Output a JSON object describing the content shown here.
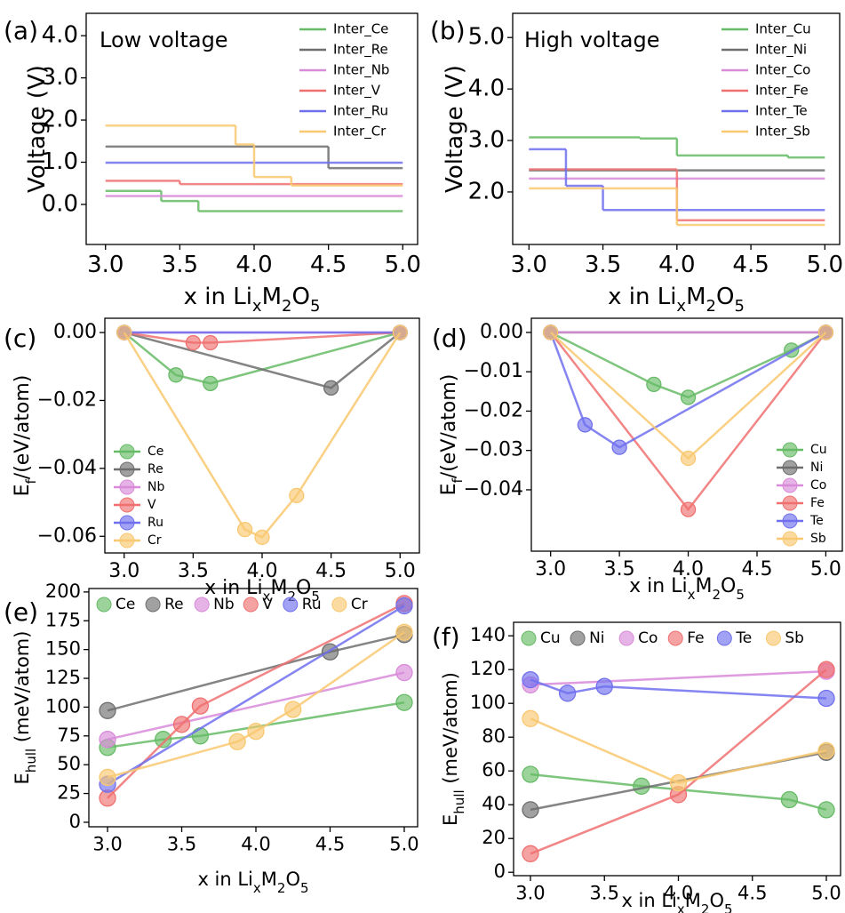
{
  "chart_data": [
    {
      "type": "step",
      "panel_label": "(a)",
      "annotation": "Low voltage",
      "xlabel": [
        "x in Li",
        "x",
        "M",
        "2",
        "O",
        "5"
      ],
      "ylabel": [
        "Voltage (V)"
      ],
      "xlim": [
        2.87,
        5.1
      ],
      "ylim": [
        -0.95,
        4.53
      ],
      "xticks": [
        {
          "value": 3,
          "label": "3.0"
        },
        {
          "value": 3.5,
          "label": "3.5"
        },
        {
          "value": 4,
          "label": "4.0"
        },
        {
          "value": 4.5,
          "label": "4.5"
        },
        {
          "value": 5,
          "label": "5.0"
        }
      ],
      "yticks": [
        {
          "value": 0,
          "label": "0.0"
        },
        {
          "value": 1,
          "label": "1.0"
        },
        {
          "value": 2,
          "label": "2.0"
        },
        {
          "value": 3,
          "label": "3.0"
        },
        {
          "value": 4,
          "label": "4.0"
        }
      ],
      "legend": "upper right",
      "legend_handle": "line",
      "legend_ncol": 1,
      "series": [
        {
          "name": "Inter_Ce",
          "color": "#66bb66",
          "x_edges": [
            3,
            3.375,
            3.625,
            5
          ],
          "values": [
            0.32,
            0.08,
            -0.16
          ]
        },
        {
          "name": "Inter_Re",
          "color": "#6e6e6e",
          "x_edges": [
            3,
            4.5,
            5
          ],
          "values": [
            1.37,
            0.86
          ]
        },
        {
          "name": "Inter_Nb",
          "color": "#d98ad9",
          "x_edges": [
            3,
            5
          ],
          "values": [
            0.2
          ]
        },
        {
          "name": "Inter_V",
          "color": "#f07070",
          "x_edges": [
            3,
            3.5,
            5
          ],
          "values": [
            0.56,
            0.48
          ]
        },
        {
          "name": "Inter_Ru",
          "color": "#7070ee",
          "x_edges": [
            3,
            5
          ],
          "values": [
            0.99
          ]
        },
        {
          "name": "Inter_Cr",
          "color": "#f9c870",
          "x_edges": [
            3,
            3.875,
            4,
            4.25,
            5
          ],
          "values": [
            1.87,
            1.42,
            0.65,
            0.45
          ]
        }
      ]
    },
    {
      "type": "step",
      "panel_label": "(b)",
      "annotation": "High voltage",
      "xlabel": [
        "x in Li",
        "x",
        "M",
        "2",
        "O",
        "5"
      ],
      "ylabel": [
        "Voltage (V)"
      ],
      "xlim": [
        2.89,
        5.1
      ],
      "ylim": [
        0.98,
        5.47
      ],
      "xticks": [
        {
          "value": 3,
          "label": "3.0"
        },
        {
          "value": 3.5,
          "label": "3.5"
        },
        {
          "value": 4,
          "label": "4.0"
        },
        {
          "value": 4.5,
          "label": "4.5"
        },
        {
          "value": 5,
          "label": "5.0"
        }
      ],
      "yticks": [
        {
          "value": 2,
          "label": "2.0"
        },
        {
          "value": 3,
          "label": "3.0"
        },
        {
          "value": 4,
          "label": "4.0"
        },
        {
          "value": 5,
          "label": "5.0"
        }
      ],
      "legend": "upper right",
      "legend_handle": "line",
      "legend_ncol": 1,
      "series": [
        {
          "name": "Inter_Cu",
          "color": "#66bb66",
          "x_edges": [
            3,
            3.75,
            4,
            4.75,
            5
          ],
          "values": [
            3.06,
            3.04,
            2.71,
            2.67
          ]
        },
        {
          "name": "Inter_Ni",
          "color": "#6e6e6e",
          "x_edges": [
            3,
            5
          ],
          "values": [
            2.42
          ]
        },
        {
          "name": "Inter_Co",
          "color": "#d98ad9",
          "x_edges": [
            3,
            5
          ],
          "values": [
            2.26
          ]
        },
        {
          "name": "Inter_Fe",
          "color": "#f07070",
          "x_edges": [
            3,
            4,
            5
          ],
          "values": [
            2.44,
            1.45
          ]
        },
        {
          "name": "Inter_Te",
          "color": "#7070ee",
          "x_edges": [
            3,
            3.25,
            3.5,
            5
          ],
          "values": [
            2.83,
            2.12,
            1.65
          ]
        },
        {
          "name": "Inter_Sb",
          "color": "#f9c870",
          "x_edges": [
            3,
            4,
            5
          ],
          "values": [
            2.07,
            1.36
          ]
        }
      ]
    },
    {
      "type": "line",
      "markers": true,
      "panel_label": "(c)",
      "xlabel": [
        "x in Li",
        "x",
        "M",
        "2",
        "O",
        "5"
      ],
      "ylabel": [
        "E",
        "f",
        "/(eV/atom)"
      ],
      "xlim": [
        2.86,
        5.14
      ],
      "ylim": [
        -0.0649,
        0.0042
      ],
      "xticks": [
        {
          "value": 3,
          "label": "3.0"
        },
        {
          "value": 3.5,
          "label": "3.5"
        },
        {
          "value": 4,
          "label": "4.0"
        },
        {
          "value": 4.5,
          "label": "4.5"
        },
        {
          "value": 5,
          "label": "5.0"
        }
      ],
      "yticks": [
        {
          "value": 0,
          "label": "0.00"
        },
        {
          "value": -0.02,
          "label": "−0.02"
        },
        {
          "value": -0.04,
          "label": "−0.04"
        },
        {
          "value": -0.06,
          "label": "−0.06"
        }
      ],
      "legend": "lower left",
      "legend_handle": "linemarker",
      "legend_ncol": 1,
      "series": [
        {
          "name": "Ce",
          "color": "#66bb66",
          "x": [
            3,
            3.375,
            3.625,
            5
          ],
          "values": [
            0,
            -0.0125,
            -0.015,
            0
          ]
        },
        {
          "name": "Re",
          "color": "#6e6e6e",
          "x": [
            3,
            4.5,
            5
          ],
          "values": [
            0,
            -0.0163,
            0
          ]
        },
        {
          "name": "Nb",
          "color": "#d98ad9",
          "x": [
            3,
            5
          ],
          "values": [
            0,
            0
          ]
        },
        {
          "name": "V",
          "color": "#f07070",
          "x": [
            3,
            3.5,
            3.625,
            5
          ],
          "values": [
            0,
            -0.003,
            -0.003,
            0
          ]
        },
        {
          "name": "Ru",
          "color": "#7070ee",
          "x": [
            3,
            5
          ],
          "values": [
            0,
            0
          ]
        },
        {
          "name": "Cr",
          "color": "#f9c870",
          "x": [
            3,
            3.875,
            4,
            4.25,
            5
          ],
          "values": [
            0,
            -0.058,
            -0.0603,
            -0.048,
            0
          ]
        }
      ]
    },
    {
      "type": "line",
      "markers": true,
      "panel_label": "(d)",
      "xlabel": [
        "x in Li",
        "x",
        "M",
        "2",
        "O",
        "5"
      ],
      "ylabel": [
        "E",
        "f",
        "/(eV/atom)"
      ],
      "xlim": [
        2.86,
        5.12
      ],
      "ylim": [
        -0.0556,
        0.0036
      ],
      "xticks": [
        {
          "value": 3,
          "label": "3.0"
        },
        {
          "value": 3.5,
          "label": "3.5"
        },
        {
          "value": 4,
          "label": "4.0"
        },
        {
          "value": 4.5,
          "label": "4.5"
        },
        {
          "value": 5,
          "label": "5.0"
        }
      ],
      "yticks": [
        {
          "value": 0,
          "label": "0.00"
        },
        {
          "value": -0.01,
          "label": "−0.01"
        },
        {
          "value": -0.02,
          "label": "−0.02"
        },
        {
          "value": -0.03,
          "label": "−0.03"
        },
        {
          "value": -0.04,
          "label": "−0.04"
        }
      ],
      "legend": "lower right",
      "legend_handle": "linemarker",
      "legend_ncol": 1,
      "series": [
        {
          "name": "Cu",
          "color": "#66bb66",
          "x": [
            3,
            3.75,
            4,
            4.75,
            5
          ],
          "values": [
            0,
            -0.0132,
            -0.0165,
            -0.0045,
            0
          ]
        },
        {
          "name": "Ni",
          "color": "#6e6e6e",
          "x": [
            3,
            5
          ],
          "values": [
            0,
            0
          ]
        },
        {
          "name": "Co",
          "color": "#d98ad9",
          "x": [
            3,
            5
          ],
          "values": [
            0,
            0
          ]
        },
        {
          "name": "Fe",
          "color": "#f07070",
          "x": [
            3,
            4,
            5
          ],
          "values": [
            0,
            -0.045,
            0
          ]
        },
        {
          "name": "Te",
          "color": "#7070ee",
          "x": [
            3,
            3.25,
            3.5,
            5
          ],
          "values": [
            0,
            -0.0235,
            -0.0292,
            0
          ]
        },
        {
          "name": "Sb",
          "color": "#f9c870",
          "x": [
            3,
            4,
            5
          ],
          "values": [
            0,
            -0.032,
            0
          ]
        }
      ]
    },
    {
      "type": "line",
      "markers": true,
      "panel_label": "(e)",
      "xlabel": [
        "x in Li",
        "x",
        "M",
        "2",
        "O",
        "5"
      ],
      "ylabel": [
        "E",
        "hull",
        " (meV/atom)"
      ],
      "xlim": [
        2.874,
        5.09
      ],
      "ylim": [
        -3.9,
        203
      ],
      "xticks": [
        {
          "value": 3,
          "label": "3.0"
        },
        {
          "value": 3.5,
          "label": "3.5"
        },
        {
          "value": 4,
          "label": "4.0"
        },
        {
          "value": 4.5,
          "label": "4.5"
        },
        {
          "value": 5,
          "label": "5.0"
        }
      ],
      "yticks": [
        0,
        25,
        50,
        75,
        100,
        125,
        150,
        175,
        200
      ],
      "legend": "upper left",
      "legend_handle": "marker",
      "legend_ncol": 6,
      "series": [
        {
          "name": "Ce",
          "color": "#66bb66",
          "x": [
            3,
            3.375,
            3.625,
            5
          ],
          "values": [
            65,
            72,
            75,
            104
          ]
        },
        {
          "name": "Re",
          "color": "#6e6e6e",
          "x": [
            3,
            4.5,
            5
          ],
          "values": [
            97,
            148,
            163
          ]
        },
        {
          "name": "Nb",
          "color": "#d98ad9",
          "x": [
            3,
            5
          ],
          "values": [
            72,
            130
          ]
        },
        {
          "name": "V",
          "color": "#f07070",
          "x": [
            3,
            3.5,
            3.625,
            5
          ],
          "values": [
            21,
            85,
            101,
            190
          ]
        },
        {
          "name": "Ru",
          "color": "#7070ee",
          "x": [
            3,
            5
          ],
          "values": [
            33,
            188
          ]
        },
        {
          "name": "Cr",
          "color": "#f9c870",
          "x": [
            3,
            3.875,
            4,
            4.25,
            5
          ],
          "values": [
            39,
            70,
            79,
            98,
            165
          ]
        }
      ]
    },
    {
      "type": "line",
      "markers": true,
      "panel_label": "(f)",
      "xlabel": [
        "x in Li",
        "x",
        "M",
        "2",
        "O",
        "5"
      ],
      "ylabel": [
        "E",
        "hull",
        " (meV/atom)"
      ],
      "xlim": [
        2.886,
        5.096
      ],
      "ylim": [
        -2,
        148
      ],
      "xticks": [
        {
          "value": 3,
          "label": "3.0"
        },
        {
          "value": 3.5,
          "label": "3.5"
        },
        {
          "value": 4,
          "label": "4.0"
        },
        {
          "value": 4.5,
          "label": "4.5"
        },
        {
          "value": 5,
          "label": "5.0"
        }
      ],
      "yticks": [
        0,
        20,
        40,
        60,
        80,
        100,
        120,
        140
      ],
      "legend": "upper left",
      "legend_handle": "marker",
      "legend_ncol": 6,
      "series": [
        {
          "name": "Cu",
          "color": "#66bb66",
          "x": [
            3,
            3.75,
            4.75,
            5
          ],
          "values": [
            58,
            51,
            43,
            37
          ]
        },
        {
          "name": "Ni",
          "color": "#6e6e6e",
          "x": [
            3,
            5
          ],
          "values": [
            37,
            71
          ]
        },
        {
          "name": "Co",
          "color": "#d98ad9",
          "x": [
            3,
            5
          ],
          "values": [
            111,
            119
          ]
        },
        {
          "name": "Fe",
          "color": "#f07070",
          "x": [
            3,
            4,
            5
          ],
          "values": [
            11,
            46,
            120
          ]
        },
        {
          "name": "Te",
          "color": "#7070ee",
          "x": [
            3,
            3.25,
            3.5,
            5
          ],
          "values": [
            114,
            106,
            110,
            103
          ]
        },
        {
          "name": "Sb",
          "color": "#f9c870",
          "x": [
            3,
            4,
            5
          ],
          "values": [
            91,
            53,
            72
          ]
        }
      ]
    }
  ]
}
